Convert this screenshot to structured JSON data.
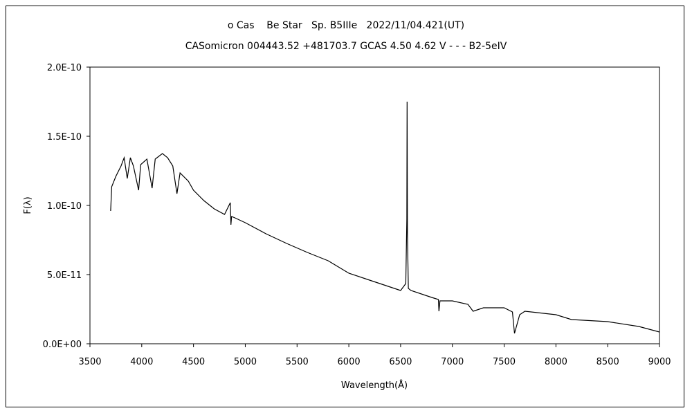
{
  "chart_data": {
    "type": "line",
    "title": "ο Cas    Be Star   Sp. B5IIIe   2022/11/04.421(UT)",
    "subtitle": "CASomicron 004443.52 +481703.7 GCAS 4.50 4.62 V - - - B2-5eIV",
    "xlabel": "Wavelength(Å)",
    "ylabel": "F(λ)",
    "xlim": [
      3500,
      9000
    ],
    "ylim": [
      0,
      2e-10
    ],
    "xticks": [
      "3500",
      "4000",
      "4500",
      "5000",
      "5500",
      "6000",
      "6500",
      "7000",
      "7500",
      "8000",
      "8500",
      "9000"
    ],
    "yticks": [
      "0.0E+00",
      "5.0E-11",
      "1.0E-10",
      "1.5E-10",
      "2.0E-10"
    ],
    "grid": false,
    "series": [
      {
        "name": "spectrum",
        "unit_scale": 1e-11,
        "x": [
          3700,
          3710,
          3750,
          3800,
          3830,
          3860,
          3890,
          3920,
          3970,
          3990,
          4050,
          4100,
          4130,
          4200,
          4250,
          4300,
          4340,
          4370,
          4450,
          4500,
          4600,
          4700,
          4800,
          4855,
          4861,
          4868,
          4900,
          5000,
          5200,
          5400,
          5600,
          5800,
          6000,
          6200,
          6300,
          6500,
          6550,
          6560,
          6563,
          6566,
          6575,
          6600,
          6800,
          6865,
          6870,
          6880,
          7000,
          7150,
          7200,
          7300,
          7500,
          7580,
          7600,
          7650,
          7700,
          8000,
          8150,
          8500,
          8800,
          9000
        ],
        "y": [
          9.6,
          11.35,
          12.1,
          12.85,
          13.45,
          11.95,
          13.45,
          12.85,
          11.1,
          12.95,
          13.35,
          11.25,
          13.35,
          13.75,
          13.45,
          12.85,
          10.85,
          12.35,
          11.75,
          11.1,
          10.35,
          9.75,
          9.35,
          10.2,
          8.6,
          9.2,
          9.1,
          8.75,
          7.95,
          7.25,
          6.6,
          6.0,
          5.1,
          4.6,
          4.35,
          3.85,
          4.35,
          9.0,
          17.5,
          8.0,
          4.0,
          3.85,
          3.35,
          3.2,
          2.35,
          3.1,
          3.1,
          2.85,
          2.35,
          2.6,
          2.6,
          2.3,
          0.75,
          2.1,
          2.35,
          2.1,
          1.75,
          1.6,
          1.25,
          0.85
        ]
      }
    ]
  }
}
